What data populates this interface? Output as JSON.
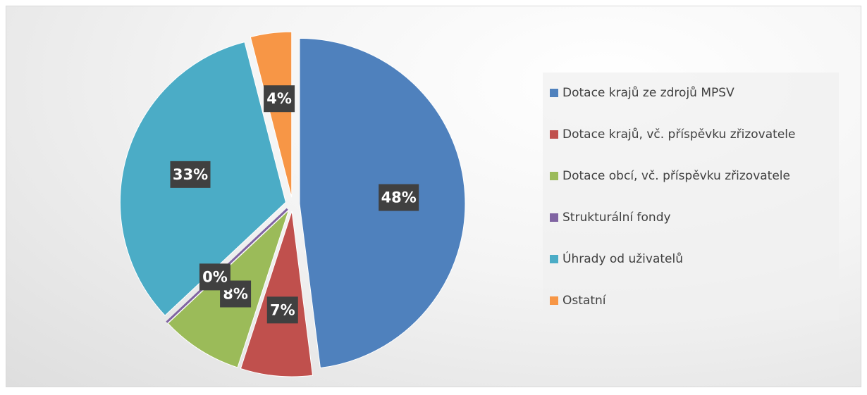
{
  "chart_data": {
    "type": "pie",
    "categories": [
      "Dotace krajů ze zdrojů MPSV",
      "Dotace krajů, vč. příspěvku zřizovatele",
      "Dotace obcí, vč. příspěvku zřizovatele",
      "Strukturální fondy",
      "Úhrady od uživatelů",
      "Ostatní"
    ],
    "values": [
      48,
      7,
      8,
      0,
      33,
      4
    ],
    "value_labels": [
      "48%",
      "7%",
      "8%",
      "0%",
      "33%",
      "4%"
    ],
    "colors": [
      "#4f81bd",
      "#c0504d",
      "#9bbb59",
      "#8064a2",
      "#4bacc6",
      "#f79646"
    ],
    "legend": "right"
  }
}
